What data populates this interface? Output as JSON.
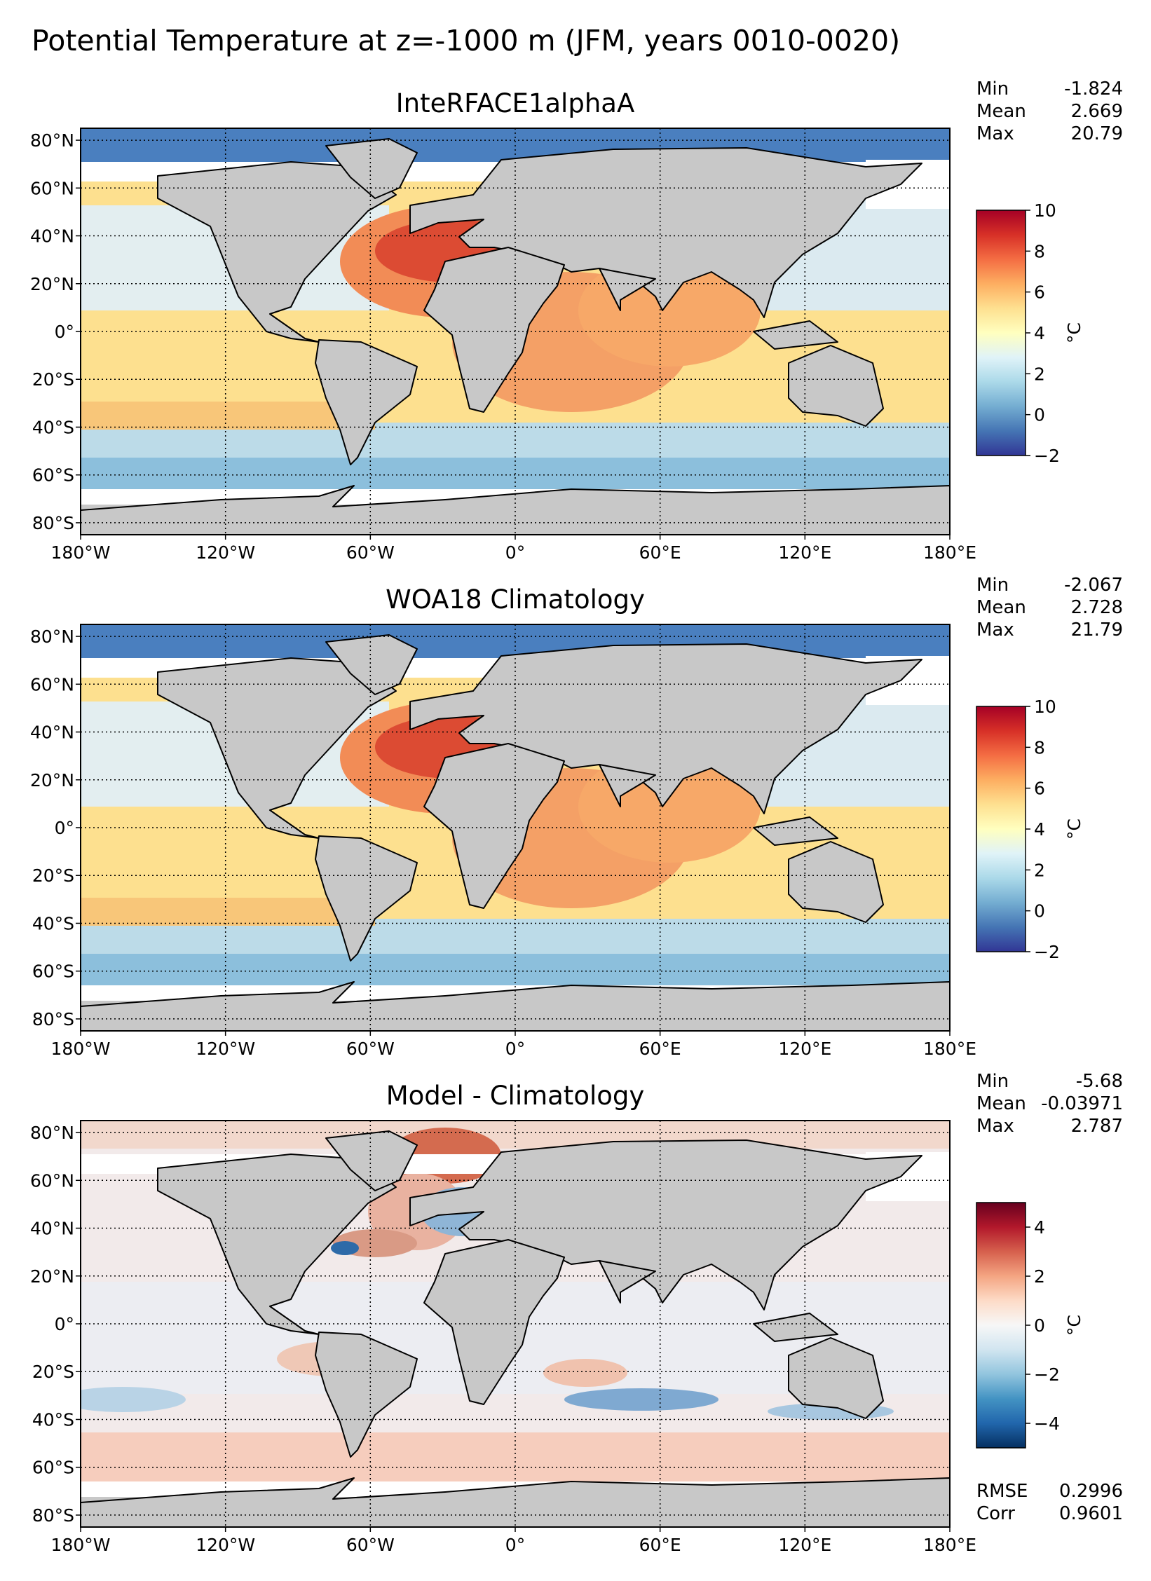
{
  "figure_title": "Potential Temperature at z=-1000 m (JFM, years 0010-0020)",
  "lat_ticks": [
    {
      "value": 80,
      "label": "80°N"
    },
    {
      "value": 60,
      "label": "60°N"
    },
    {
      "value": 40,
      "label": "40°N"
    },
    {
      "value": 20,
      "label": "20°N"
    },
    {
      "value": 0,
      "label": "0°"
    },
    {
      "value": -20,
      "label": "20°S"
    },
    {
      "value": -40,
      "label": "40°S"
    },
    {
      "value": -60,
      "label": "60°S"
    },
    {
      "value": -80,
      "label": "80°S"
    }
  ],
  "lon_ticks": [
    {
      "value": -180,
      "label": "180°W"
    },
    {
      "value": -120,
      "label": "120°W"
    },
    {
      "value": -60,
      "label": "60°W"
    },
    {
      "value": 0,
      "label": "0°"
    },
    {
      "value": 60,
      "label": "60°E"
    },
    {
      "value": 120,
      "label": "120°E"
    },
    {
      "value": 180,
      "label": "180°E"
    }
  ],
  "extent": {
    "lon": [
      -180,
      180
    ],
    "lat": [
      -85,
      85
    ]
  },
  "panels": [
    {
      "title": "InteRFACE1alphaA",
      "stats": [
        {
          "label": "Min",
          "value": "-1.824"
        },
        {
          "label": "Mean",
          "value": "2.669"
        },
        {
          "label": "Max",
          "value": "20.79"
        }
      ],
      "colorbar": {
        "vmin": -2,
        "vmax": 10,
        "ticks": [
          {
            "value": 10,
            "label": "10"
          },
          {
            "value": 8,
            "label": "8"
          },
          {
            "value": 6,
            "label": "6"
          },
          {
            "value": 4,
            "label": "4"
          },
          {
            "value": 2,
            "label": "2"
          },
          {
            "value": 0,
            "label": "0"
          },
          {
            "value": -2,
            "label": "−2"
          }
        ],
        "unit": "°C",
        "colors": [
          "#313695",
          "#4575b4",
          "#74add1",
          "#abd9e9",
          "#e0f3f8",
          "#ffffbf",
          "#fee090",
          "#fdae61",
          "#f46d43",
          "#d73027",
          "#a50026"
        ]
      },
      "metrics": []
    },
    {
      "title": "WOA18 Climatology",
      "stats": [
        {
          "label": "Min",
          "value": "-2.067"
        },
        {
          "label": "Mean",
          "value": "2.728"
        },
        {
          "label": "Max",
          "value": "21.79"
        }
      ],
      "colorbar": {
        "vmin": -2,
        "vmax": 10,
        "ticks": [
          {
            "value": 10,
            "label": "10"
          },
          {
            "value": 8,
            "label": "8"
          },
          {
            "value": 6,
            "label": "6"
          },
          {
            "value": 4,
            "label": "4"
          },
          {
            "value": 2,
            "label": "2"
          },
          {
            "value": 0,
            "label": "0"
          },
          {
            "value": -2,
            "label": "−2"
          }
        ],
        "unit": "°C",
        "colors": [
          "#313695",
          "#4575b4",
          "#74add1",
          "#abd9e9",
          "#e0f3f8",
          "#ffffbf",
          "#fee090",
          "#fdae61",
          "#f46d43",
          "#d73027",
          "#a50026"
        ]
      },
      "metrics": []
    },
    {
      "title": "Model - Climatology",
      "stats": [
        {
          "label": "Min",
          "value": "-5.68"
        },
        {
          "label": "Mean",
          "value": "-0.03971"
        },
        {
          "label": "Max",
          "value": "2.787"
        }
      ],
      "colorbar": {
        "vmin": -5,
        "vmax": 5,
        "ticks": [
          {
            "value": 4,
            "label": "4"
          },
          {
            "value": 2,
            "label": "2"
          },
          {
            "value": 0,
            "label": "0"
          },
          {
            "value": -2,
            "label": "−2"
          },
          {
            "value": -4,
            "label": "−4"
          }
        ],
        "unit": "°C",
        "colors": [
          "#053061",
          "#2166ac",
          "#4393c3",
          "#92c5de",
          "#d1e5f0",
          "#f7f7f7",
          "#fddbc7",
          "#f4a582",
          "#d6604d",
          "#b2182b",
          "#67001f"
        ]
      },
      "metrics": [
        {
          "label": "RMSE",
          "value": "0.2996"
        },
        {
          "label": "Corr",
          "value": "0.9601"
        }
      ]
    }
  ]
}
